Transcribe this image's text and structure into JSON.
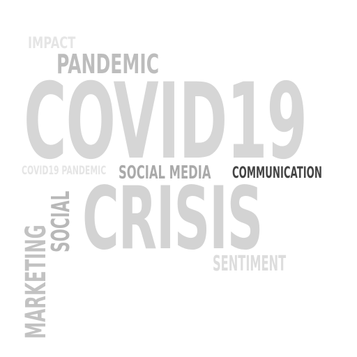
{
  "word_cloud": {
    "words": [
      {
        "id": "impact",
        "text": "IMPACT",
        "color": "#e5e5e5",
        "orientation": "horizontal"
      },
      {
        "id": "pandemic",
        "text": "PANDEMIC",
        "color": "#bdbdbd",
        "orientation": "horizontal"
      },
      {
        "id": "covid19",
        "text": "COVID19",
        "color": "#d6d6d6",
        "orientation": "horizontal"
      },
      {
        "id": "covid19_pandemic",
        "text": "COVID19 PANDEMIC",
        "color": "#e5e5e5",
        "orientation": "horizontal"
      },
      {
        "id": "social_media",
        "text": "SOCIAL MEDIA",
        "color": "#aaaaaa",
        "orientation": "horizontal"
      },
      {
        "id": "communication",
        "text": "COMMUNICATION",
        "color": "#444444",
        "orientation": "horizontal"
      },
      {
        "id": "crisis",
        "text": "CRISIS",
        "color": "#d3d3d3",
        "orientation": "horizontal"
      },
      {
        "id": "sentiment",
        "text": "SENTIMENT",
        "color": "#dddddd",
        "orientation": "horizontal"
      },
      {
        "id": "social",
        "text": "SOCIAL",
        "color": "#b8b8b8",
        "orientation": "vertical"
      },
      {
        "id": "marketing",
        "text": "MARKETING",
        "color": "#c2c2c2",
        "orientation": "vertical"
      }
    ]
  }
}
